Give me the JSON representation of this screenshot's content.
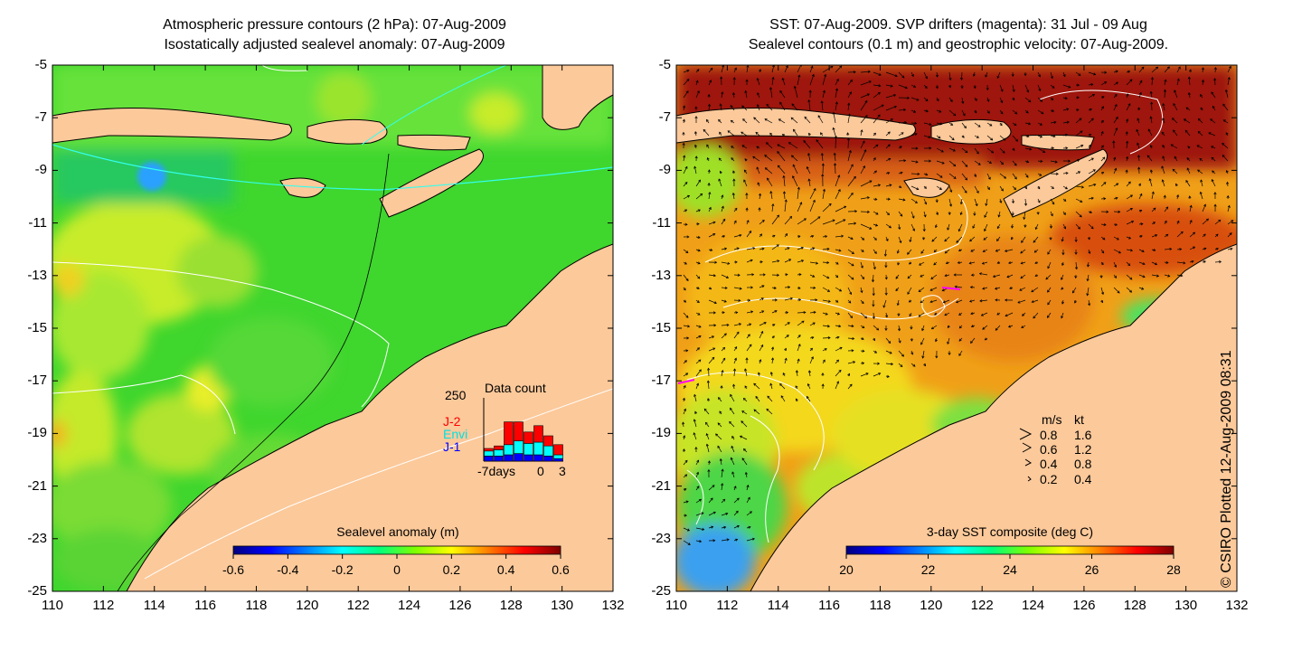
{
  "left_panel": {
    "title_line1": "Atmospheric pressure contours (2 hPa): 07-Aug-2009",
    "title_line2": "Isostatically adjusted sealevel anomaly: 07-Aug-2009",
    "colorbar": {
      "label": "Sealevel anomaly (m)",
      "ticks": [
        "-0.6",
        "-0.4",
        "-0.2",
        "0",
        "0.2",
        "0.4",
        "0.6"
      ],
      "colors": [
        "#00007f",
        "#0000ff",
        "#007fff",
        "#00ffff",
        "#00ff7f",
        "#7fff00",
        "#ffff00",
        "#ff7f00",
        "#ff0000",
        "#7f0000"
      ]
    },
    "data_count": {
      "title": "Data count",
      "ymax": "250",
      "x_start": "-7days",
      "x_zero": "0",
      "x_end": "3",
      "legend": [
        {
          "name": "J-2",
          "color": "#ff0000"
        },
        {
          "name": "Envi",
          "color": "#00ffff"
        },
        {
          "name": "J-1",
          "color": "#0000ff"
        }
      ],
      "bars": [
        {
          "j1": 20,
          "envi": 20,
          "j2": 10
        },
        {
          "j1": 20,
          "envi": 25,
          "j2": 15
        },
        {
          "j1": 25,
          "envi": 40,
          "j2": 90
        },
        {
          "j1": 30,
          "envi": 50,
          "j2": 75
        },
        {
          "j1": 25,
          "envi": 45,
          "j2": 45
        },
        {
          "j1": 25,
          "envi": 50,
          "j2": 65
        },
        {
          "j1": 20,
          "envi": 40,
          "j2": 40
        },
        {
          "j1": 10,
          "envi": 15,
          "j2": 40
        }
      ]
    }
  },
  "right_panel": {
    "title_line1": "SST: 07-Aug-2009. SVP drifters (magenta): 31 Jul - 09 Aug",
    "title_line2": "Sealevel contours (0.1 m) and geostrophic velocity: 07-Aug-2009.",
    "colorbar": {
      "label": "3-day SST composite (deg C)",
      "ticks": [
        "20",
        "22",
        "24",
        "26",
        "28"
      ],
      "colors": [
        "#00007f",
        "#0000ff",
        "#007fff",
        "#00ffff",
        "#00ff7f",
        "#7fff00",
        "#ffff00",
        "#ff7f00",
        "#ff0000",
        "#7f0000"
      ]
    },
    "speed_legend": {
      "header_ms": "m/s",
      "header_kt": "kt",
      "rows": [
        {
          "ms": "0.8",
          "kt": "1.6"
        },
        {
          "ms": "0.6",
          "kt": "1.2"
        },
        {
          "ms": "0.4",
          "kt": "0.8"
        },
        {
          "ms": "0.2",
          "kt": "0.4"
        }
      ]
    }
  },
  "axes": {
    "x_ticks": [
      "110",
      "112",
      "114",
      "116",
      "118",
      "120",
      "122",
      "124",
      "126",
      "128",
      "130",
      "132"
    ],
    "y_ticks": [
      "-5",
      "-7",
      "-9",
      "-11",
      "-13",
      "-15",
      "-17",
      "-19",
      "-21",
      "-23",
      "-25"
    ]
  },
  "copyright": "© CSIRO Plotted 12-Aug-2009 08:31",
  "colors": {
    "land": "#fcc99a",
    "ocean_green": "#33dd22"
  }
}
